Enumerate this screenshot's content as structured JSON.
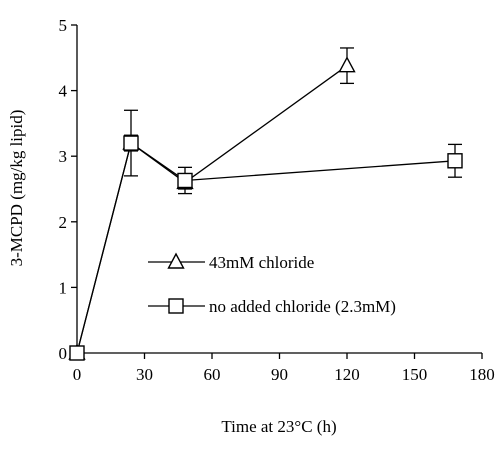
{
  "chart_data": {
    "type": "line",
    "title": "",
    "xlabel": "Time at 23°C (h)",
    "ylabel": "3-MCPD (mg/kg lipid)",
    "xlim": [
      0,
      180
    ],
    "ylim": [
      0,
      5
    ],
    "xticks": [
      0,
      30,
      60,
      90,
      120,
      150,
      180
    ],
    "yticks": [
      0,
      1,
      2,
      3,
      4,
      5
    ],
    "grid": false,
    "legend_position": "center",
    "series": [
      {
        "name": "43mM chloride",
        "marker": "triangle",
        "x": [
          0,
          24,
          48,
          120
        ],
        "y": [
          0,
          3.2,
          2.6,
          4.38
        ],
        "error": [
          0,
          0.12,
          0.1,
          0.27
        ]
      },
      {
        "name": "no added chloride (2.3mM)",
        "marker": "square",
        "x": [
          0,
          24,
          48,
          168
        ],
        "y": [
          0,
          3.2,
          2.63,
          2.93
        ],
        "error": [
          0,
          0.5,
          0.2,
          0.25
        ]
      }
    ]
  }
}
